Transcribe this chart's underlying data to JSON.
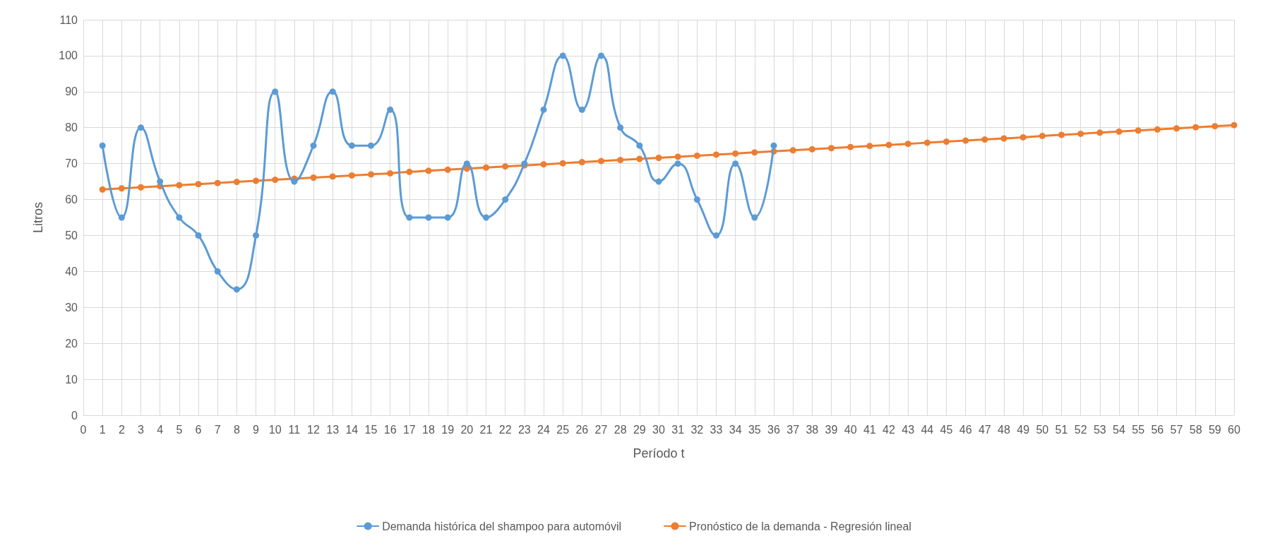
{
  "chart_data": {
    "type": "line",
    "xlabel": "Período t",
    "ylabel": "Litros",
    "x": [
      1,
      2,
      3,
      4,
      5,
      6,
      7,
      8,
      9,
      10,
      11,
      12,
      13,
      14,
      15,
      16,
      17,
      18,
      19,
      20,
      21,
      22,
      23,
      24,
      25,
      26,
      27,
      28,
      29,
      30,
      31,
      32,
      33,
      34,
      35,
      36,
      37,
      38,
      39,
      40,
      41,
      42,
      43,
      44,
      45,
      46,
      47,
      48,
      49,
      50,
      51,
      52,
      53,
      54,
      55,
      56,
      57,
      58,
      59,
      60
    ],
    "series": [
      {
        "name": "Demanda histórica del shampoo para automóvil",
        "color": "#5b9bd5",
        "x": [
          1,
          2,
          3,
          4,
          5,
          6,
          7,
          8,
          9,
          10,
          11,
          12,
          13,
          14,
          15,
          16,
          17,
          18,
          19,
          20,
          21,
          22,
          23,
          24,
          25,
          26,
          27,
          28,
          29,
          30,
          31,
          32,
          33,
          34,
          35,
          36
        ],
        "values": [
          75,
          55,
          80,
          65,
          55,
          50,
          40,
          35,
          50,
          90,
          65,
          75,
          90,
          75,
          75,
          85,
          55,
          55,
          55,
          70,
          55,
          60,
          70,
          85,
          100,
          85,
          100,
          80,
          75,
          65,
          70,
          60,
          50,
          70,
          55,
          75
        ]
      },
      {
        "name": "Pronóstico de la demanda - Regresión lineal",
        "color": "#ed7d31",
        "values": [
          62.8,
          63.1,
          63.4,
          63.7,
          64.0,
          64.3,
          64.6,
          64.9,
          65.2,
          65.5,
          65.8,
          66.1,
          66.4,
          66.7,
          67.0,
          67.3,
          67.7,
          68.0,
          68.3,
          68.6,
          68.9,
          69.2,
          69.5,
          69.8,
          70.1,
          70.4,
          70.7,
          71.0,
          71.3,
          71.6,
          71.9,
          72.2,
          72.5,
          72.8,
          73.1,
          73.4,
          73.7,
          74.0,
          74.3,
          74.6,
          74.9,
          75.2,
          75.5,
          75.8,
          76.1,
          76.4,
          76.7,
          77.0,
          77.3,
          77.7,
          78.0,
          78.3,
          78.6,
          78.9,
          79.2,
          79.5,
          79.8,
          80.1,
          80.4,
          80.7
        ]
      }
    ],
    "xlim": [
      0,
      60
    ],
    "xticks": [
      0,
      1,
      2,
      3,
      4,
      5,
      6,
      7,
      8,
      9,
      10,
      11,
      12,
      13,
      14,
      15,
      16,
      17,
      18,
      19,
      20,
      21,
      22,
      23,
      24,
      25,
      26,
      27,
      28,
      29,
      30,
      31,
      32,
      33,
      34,
      35,
      36,
      37,
      38,
      39,
      40,
      41,
      42,
      43,
      44,
      45,
      46,
      47,
      48,
      49,
      50,
      51,
      52,
      53,
      54,
      55,
      56,
      57,
      58,
      59,
      60
    ],
    "ylim": [
      0,
      110
    ],
    "yticks": [
      0,
      10,
      20,
      30,
      40,
      50,
      60,
      70,
      80,
      90,
      100,
      110
    ],
    "grid": true,
    "legend": "bottom",
    "marker": "circle",
    "line_style": "solid"
  }
}
